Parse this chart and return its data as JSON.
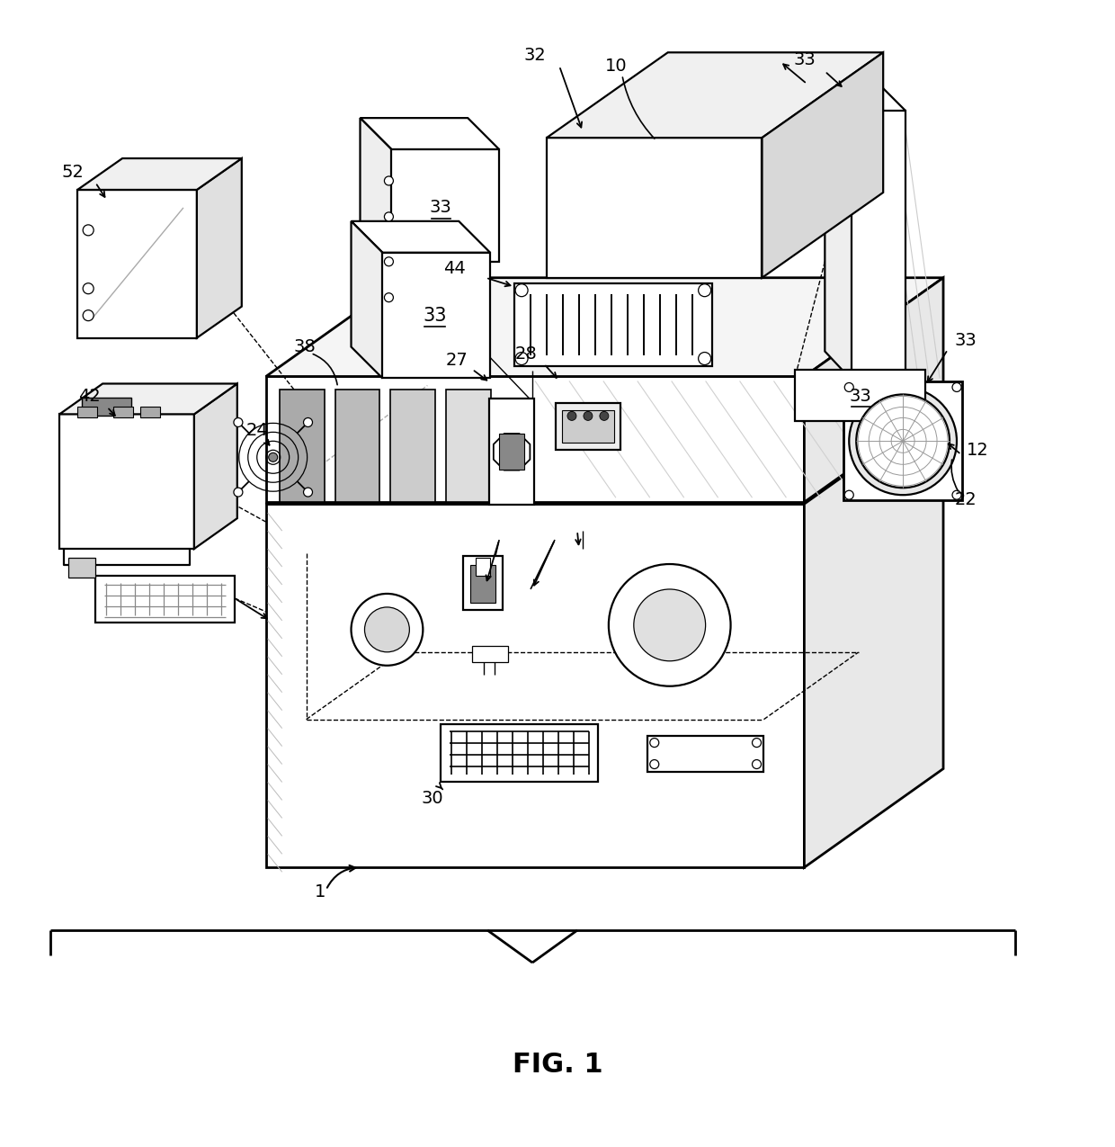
{
  "title": "FIG. 1",
  "bg_color": "#ffffff",
  "line_color": "#000000",
  "fig_width": 12.4,
  "fig_height": 12.75,
  "dpi": 100
}
